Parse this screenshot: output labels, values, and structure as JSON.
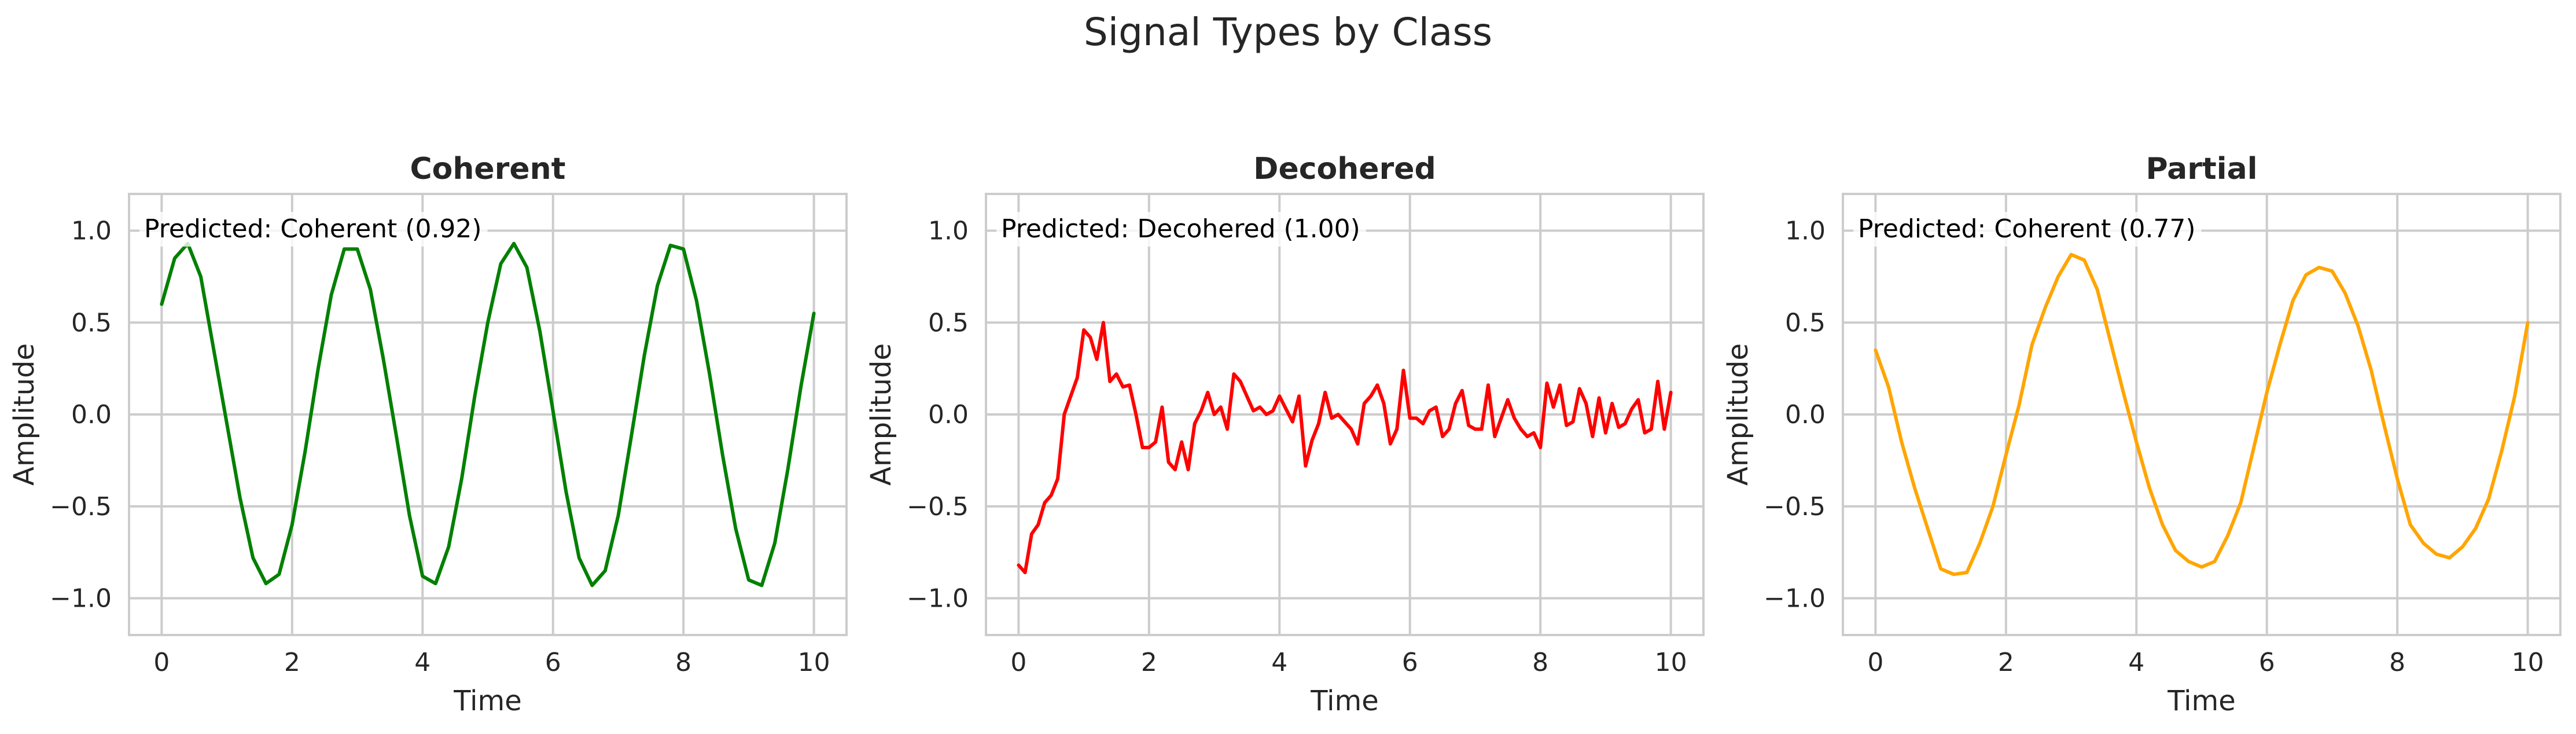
{
  "suptitle": "Signal Types by Class",
  "colors": {
    "grid": "#cccccc",
    "spine": "#cccccc",
    "text": "#262626",
    "annotation_text": "#000000",
    "annotation_box": "#ffffff"
  },
  "chart_data": [
    {
      "type": "line",
      "title": "Coherent",
      "xlabel": "Time",
      "ylabel": "Amplitude",
      "annotation": "Predicted: Coherent (0.92)",
      "xlim": [
        -0.5,
        10.5
      ],
      "ylim": [
        -1.2,
        1.2
      ],
      "xticks": [
        0,
        2,
        4,
        6,
        8,
        10
      ],
      "xtick_labels": [
        "0",
        "2",
        "4",
        "6",
        "8",
        "10"
      ],
      "yticks": [
        -1.0,
        -0.5,
        0.0,
        0.5,
        1.0
      ],
      "ytick_labels": [
        "−1.0",
        "−0.5",
        "0.0",
        "0.5",
        "1.0"
      ],
      "grid": true,
      "series": [
        {
          "color": "#008000",
          "x": [
            0,
            0.2,
            0.4,
            0.6,
            0.8,
            1.0,
            1.2,
            1.4,
            1.6,
            1.8,
            2.0,
            2.2,
            2.4,
            2.6,
            2.8,
            3.0,
            3.2,
            3.4,
            3.6,
            3.8,
            4.0,
            4.2,
            4.4,
            4.6,
            4.8,
            5.0,
            5.2,
            5.4,
            5.6,
            5.8,
            6.0,
            6.2,
            6.4,
            6.6,
            6.8,
            7.0,
            7.2,
            7.4,
            7.6,
            7.8,
            8.0,
            8.2,
            8.4,
            8.6,
            8.8,
            9.0,
            9.2,
            9.4,
            9.6,
            9.8,
            10.0
          ],
          "y": [
            0.6,
            0.85,
            0.93,
            0.75,
            0.35,
            -0.05,
            -0.45,
            -0.78,
            -0.92,
            -0.87,
            -0.6,
            -0.2,
            0.25,
            0.65,
            0.9,
            0.9,
            0.68,
            0.3,
            -0.12,
            -0.55,
            -0.88,
            -0.92,
            -0.72,
            -0.35,
            0.1,
            0.5,
            0.82,
            0.93,
            0.8,
            0.45,
            0.02,
            -0.42,
            -0.78,
            -0.93,
            -0.85,
            -0.55,
            -0.12,
            0.32,
            0.7,
            0.92,
            0.9,
            0.62,
            0.22,
            -0.22,
            -0.62,
            -0.9,
            -0.93,
            -0.7,
            -0.3,
            0.15,
            0.55
          ]
        }
      ]
    },
    {
      "type": "line",
      "title": "Decohered",
      "xlabel": "Time",
      "ylabel": "Amplitude",
      "annotation": "Predicted: Decohered (1.00)",
      "xlim": [
        -0.5,
        10.5
      ],
      "ylim": [
        -1.2,
        1.2
      ],
      "xticks": [
        0,
        2,
        4,
        6,
        8,
        10
      ],
      "xtick_labels": [
        "0",
        "2",
        "4",
        "6",
        "8",
        "10"
      ],
      "yticks": [
        -1.0,
        -0.5,
        0.0,
        0.5,
        1.0
      ],
      "ytick_labels": [
        "−1.0",
        "−0.5",
        "0.0",
        "0.5",
        "1.0"
      ],
      "grid": true,
      "series": [
        {
          "color": "#ff0000",
          "x": [
            0,
            0.1,
            0.2,
            0.3,
            0.4,
            0.5,
            0.6,
            0.7,
            0.8,
            0.9,
            1.0,
            1.1,
            1.2,
            1.3,
            1.4,
            1.5,
            1.6,
            1.7,
            1.8,
            1.9,
            2.0,
            2.1,
            2.2,
            2.3,
            2.4,
            2.5,
            2.6,
            2.7,
            2.8,
            2.9,
            3.0,
            3.1,
            3.2,
            3.3,
            3.4,
            3.5,
            3.6,
            3.7,
            3.8,
            3.9,
            4.0,
            4.1,
            4.2,
            4.3,
            4.4,
            4.5,
            4.6,
            4.7,
            4.8,
            4.9,
            5.0,
            5.1,
            5.2,
            5.3,
            5.4,
            5.5,
            5.6,
            5.7,
            5.8,
            5.9,
            6.0,
            6.1,
            6.2,
            6.3,
            6.4,
            6.5,
            6.6,
            6.7,
            6.8,
            6.9,
            7.0,
            7.1,
            7.2,
            7.3,
            7.4,
            7.5,
            7.6,
            7.7,
            7.8,
            7.9,
            8.0,
            8.1,
            8.2,
            8.3,
            8.4,
            8.5,
            8.6,
            8.7,
            8.8,
            8.9,
            9.0,
            9.1,
            9.2,
            9.3,
            9.4,
            9.5,
            9.6,
            9.7,
            9.8,
            9.9,
            10.0
          ],
          "y": [
            -0.82,
            -0.86,
            -0.65,
            -0.6,
            -0.48,
            -0.44,
            -0.35,
            0.0,
            0.1,
            0.2,
            0.46,
            0.42,
            0.3,
            0.5,
            0.18,
            0.22,
            0.15,
            0.16,
            0.0,
            -0.18,
            -0.18,
            -0.15,
            0.04,
            -0.26,
            -0.3,
            -0.15,
            -0.3,
            -0.05,
            0.02,
            0.12,
            0.0,
            0.04,
            -0.08,
            0.22,
            0.18,
            0.1,
            0.02,
            0.04,
            0.0,
            0.02,
            0.1,
            0.03,
            -0.04,
            0.1,
            -0.28,
            -0.14,
            -0.05,
            0.12,
            -0.02,
            0.0,
            -0.04,
            -0.08,
            -0.16,
            0.06,
            0.1,
            0.16,
            0.06,
            -0.16,
            -0.08,
            0.24,
            -0.02,
            -0.02,
            -0.05,
            0.02,
            0.04,
            -0.12,
            -0.08,
            0.06,
            0.13,
            -0.06,
            -0.08,
            -0.08,
            0.16,
            -0.12,
            -0.02,
            0.08,
            -0.02,
            -0.08,
            -0.12,
            -0.1,
            -0.18,
            0.17,
            0.04,
            0.16,
            -0.06,
            -0.04,
            0.14,
            0.06,
            -0.12,
            0.09,
            -0.1,
            0.06,
            -0.07,
            -0.05,
            0.03,
            0.08,
            -0.1,
            -0.08,
            0.18,
            -0.08,
            0.12
          ]
        }
      ]
    },
    {
      "type": "line",
      "title": "Partial",
      "xlabel": "Time",
      "ylabel": "Amplitude",
      "annotation": "Predicted: Coherent (0.77)",
      "xlim": [
        -0.5,
        10.5
      ],
      "ylim": [
        -1.2,
        1.2
      ],
      "xticks": [
        0,
        2,
        4,
        6,
        8,
        10
      ],
      "xtick_labels": [
        "0",
        "2",
        "4",
        "6",
        "8",
        "10"
      ],
      "yticks": [
        -1.0,
        -0.5,
        0.0,
        0.5,
        1.0
      ],
      "ytick_labels": [
        "−1.0",
        "−0.5",
        "0.0",
        "0.5",
        "1.0"
      ],
      "grid": true,
      "series": [
        {
          "color": "#ffa500",
          "x": [
            0,
            0.2,
            0.4,
            0.6,
            0.8,
            1.0,
            1.2,
            1.4,
            1.6,
            1.8,
            2.0,
            2.2,
            2.4,
            2.6,
            2.8,
            3.0,
            3.2,
            3.4,
            3.6,
            3.8,
            4.0,
            4.2,
            4.4,
            4.6,
            4.8,
            5.0,
            5.2,
            5.4,
            5.6,
            5.8,
            6.0,
            6.2,
            6.4,
            6.6,
            6.8,
            7.0,
            7.2,
            7.4,
            7.6,
            7.8,
            8.0,
            8.2,
            8.4,
            8.6,
            8.8,
            9.0,
            9.2,
            9.4,
            9.6,
            9.8,
            10.0
          ],
          "y": [
            0.35,
            0.15,
            -0.15,
            -0.4,
            -0.62,
            -0.84,
            -0.87,
            -0.86,
            -0.7,
            -0.5,
            -0.22,
            0.05,
            0.38,
            0.58,
            0.75,
            0.87,
            0.84,
            0.68,
            0.4,
            0.12,
            -0.15,
            -0.4,
            -0.6,
            -0.74,
            -0.8,
            -0.83,
            -0.8,
            -0.66,
            -0.48,
            -0.18,
            0.12,
            0.38,
            0.62,
            0.76,
            0.8,
            0.78,
            0.66,
            0.48,
            0.24,
            -0.06,
            -0.35,
            -0.6,
            -0.7,
            -0.76,
            -0.78,
            -0.72,
            -0.62,
            -0.46,
            -0.2,
            0.1,
            0.5
          ]
        }
      ]
    }
  ]
}
